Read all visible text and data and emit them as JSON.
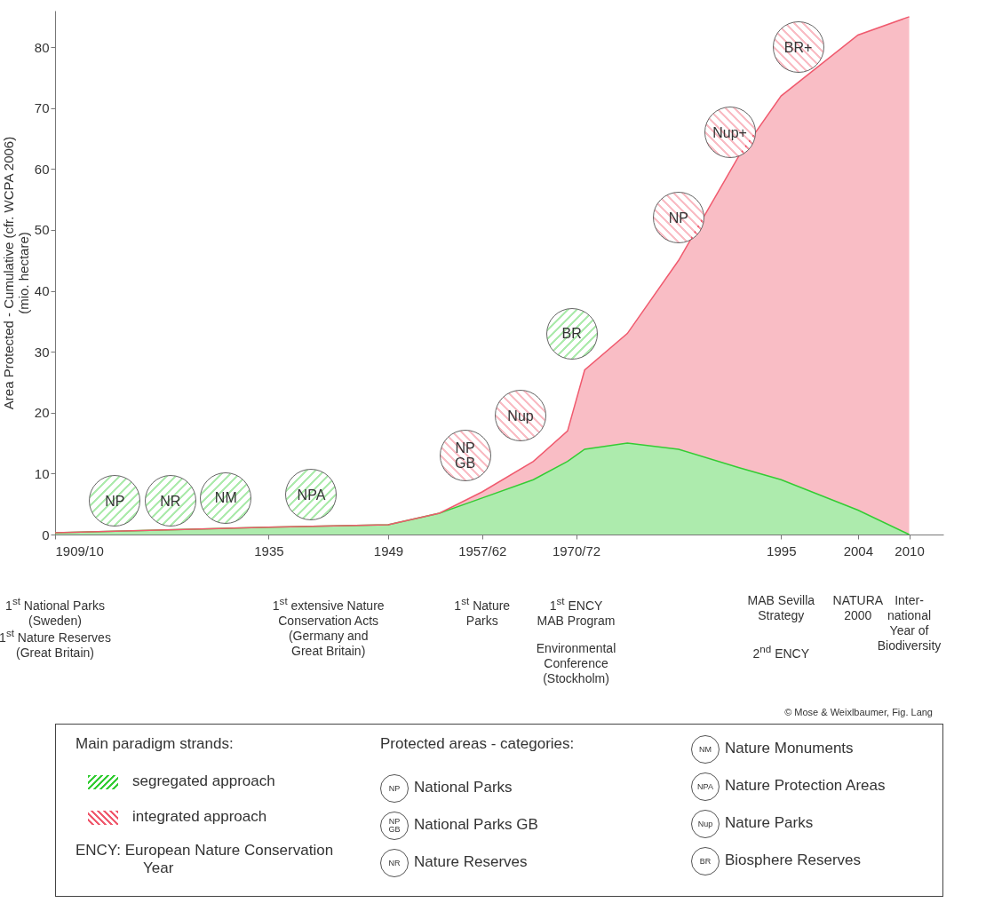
{
  "chart_data": {
    "type": "area",
    "stacked": true,
    "ylabel": "Area Protected - Cumulative (cfr. WCPA 2006)\n(mio. hectare)",
    "legend_title": "Main paradigm strands:",
    "legend": "bottom",
    "x": [
      1910,
      1935,
      1949,
      1955,
      1960,
      1966,
      1970,
      1972,
      1977,
      1983,
      1990,
      1995,
      2004,
      2010
    ],
    "xlim": [
      1910,
      2014
    ],
    "xticks": [
      {
        "value": 1910,
        "label": "1909/10"
      },
      1935,
      1949,
      {
        "value": 1960,
        "label": "1957/62"
      },
      {
        "value": 1971,
        "label": "1970/72"
      },
      1995,
      2004,
      2010
    ],
    "ylim": [
      0,
      86
    ],
    "yticks": [
      0,
      10,
      20,
      30,
      40,
      50,
      60,
      70,
      80
    ],
    "series": [
      {
        "name": "segregated approach",
        "color": "#33cc33",
        "values": [
          0.3,
          1.2,
          1.6,
          3.5,
          6,
          9,
          12,
          14,
          15,
          14,
          11,
          9,
          4,
          0
        ]
      },
      {
        "name": "integrated approach",
        "color": "#f05a6e",
        "values": [
          0,
          0,
          0,
          0,
          1,
          3,
          5,
          13,
          18,
          31,
          51,
          63,
          78,
          85
        ]
      }
    ],
    "annotations": [
      "NP",
      "NR",
      "NM",
      "NPA",
      "NP\nGB",
      "Nup",
      "BR",
      "NP",
      "Nup+",
      "BR+",
      "1$^{st}$ National Parks\n(Sweden)",
      "1$^{st}$ Nature Reserves\n(Great Britain)",
      "1$^{st}$ extensive Nature\nConservation Acts\n(Germany and\nGreat Britain)",
      "1$^{st}$ Nature\nParks",
      "1$^{st}$ ENCY\nMAB Program",
      "Environmental\nConference\n(Stockholm)",
      "MAB Sevilla\nStrategy",
      "2$^{nd}$ ENCY",
      "NATURA\n2000",
      "Inter-\nnational\nYear of\nBiodiversity",
      "© Mose & Weixlbaumer, Fig. Lang",
      "ENCY: European Nature Conservation Year",
      "Protected areas - categories:",
      "NP",
      "National Parks",
      "NP\nGB",
      "National Parks GB",
      "NR",
      "Nature Reserves",
      "NM",
      "Nature Monuments",
      "NPA",
      "Nature Protection Areas",
      "Nup",
      "Nature Parks",
      "BR",
      "Biosphere Reserves"
    ]
  }
}
